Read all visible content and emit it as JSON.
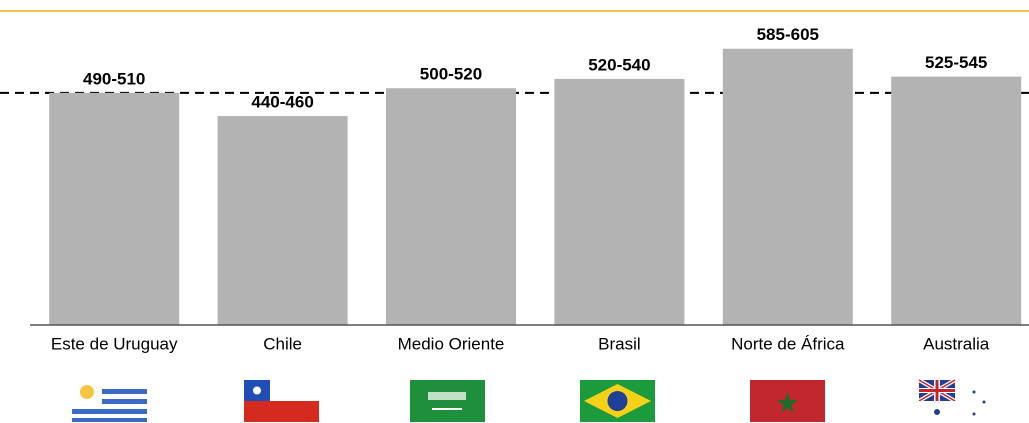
{
  "chart_data": {
    "type": "bar",
    "categories": [
      "Este de Uruguay",
      "Chile",
      "Medio Oriente",
      "Brasil",
      "Norte de África",
      "Australia"
    ],
    "values": [
      500,
      450,
      510,
      530,
      595,
      535
    ],
    "value_labels": [
      "490-510",
      "440-460",
      "500-520",
      "520-540",
      "585-605",
      "525-545"
    ],
    "color": "#b3b3b3",
    "ylim": [
      0,
      700
    ],
    "reference_line": 500
  }
}
